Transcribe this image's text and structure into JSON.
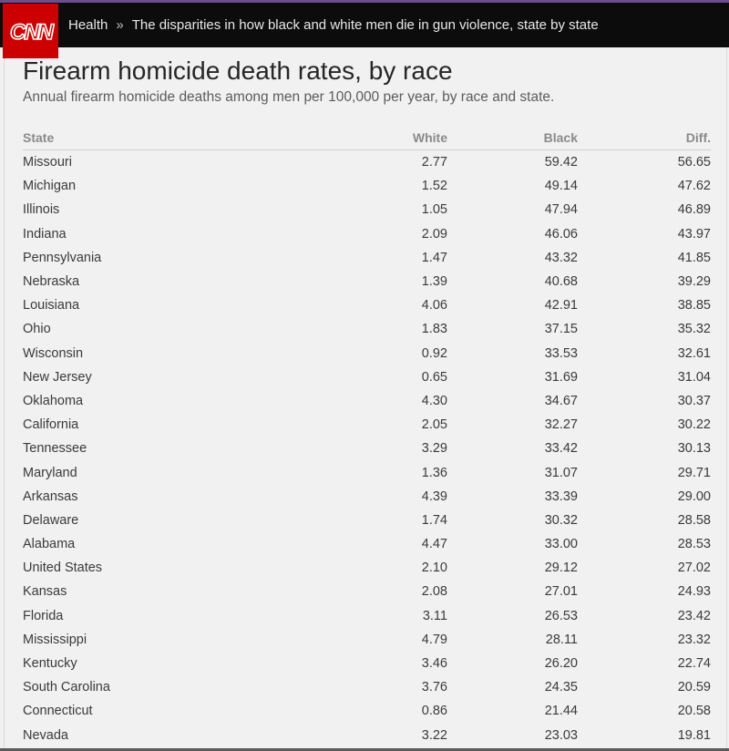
{
  "header": {
    "logo_text": "CNN",
    "section": "Health",
    "separator": "»",
    "article_title": "The disparities in how black and white men die in gun violence, state by state"
  },
  "title": "Firearm homicide death rates, by race",
  "subtitle": "Annual firearm homicide deaths among men per 100,000 per year, by race and state.",
  "table": {
    "columns": [
      "State",
      "White",
      "Black",
      "Diff."
    ],
    "rows": [
      [
        "Missouri",
        "2.77",
        "59.42",
        "56.65"
      ],
      [
        "Michigan",
        "1.52",
        "49.14",
        "47.62"
      ],
      [
        "Illinois",
        "1.05",
        "47.94",
        "46.89"
      ],
      [
        "Indiana",
        "2.09",
        "46.06",
        "43.97"
      ],
      [
        "Pennsylvania",
        "1.47",
        "43.32",
        "41.85"
      ],
      [
        "Nebraska",
        "1.39",
        "40.68",
        "39.29"
      ],
      [
        "Louisiana",
        "4.06",
        "42.91",
        "38.85"
      ],
      [
        "Ohio",
        "1.83",
        "37.15",
        "35.32"
      ],
      [
        "Wisconsin",
        "0.92",
        "33.53",
        "32.61"
      ],
      [
        "New Jersey",
        "0.65",
        "31.69",
        "31.04"
      ],
      [
        "Oklahoma",
        "4.30",
        "34.67",
        "30.37"
      ],
      [
        "California",
        "2.05",
        "32.27",
        "30.22"
      ],
      [
        "Tennessee",
        "3.29",
        "33.42",
        "30.13"
      ],
      [
        "Maryland",
        "1.36",
        "31.07",
        "29.71"
      ],
      [
        "Arkansas",
        "4.39",
        "33.39",
        "29.00"
      ],
      [
        "Delaware",
        "1.74",
        "30.32",
        "28.58"
      ],
      [
        "Alabama",
        "4.47",
        "33.00",
        "28.53"
      ],
      [
        "United States",
        "2.10",
        "29.12",
        "27.02"
      ],
      [
        "Kansas",
        "2.08",
        "27.01",
        "24.93"
      ],
      [
        "Florida",
        "3.11",
        "26.53",
        "23.42"
      ],
      [
        "Mississippi",
        "4.79",
        "28.11",
        "23.32"
      ],
      [
        "Kentucky",
        "3.46",
        "26.20",
        "22.74"
      ],
      [
        "South Carolina",
        "3.76",
        "24.35",
        "20.59"
      ],
      [
        "Connecticut",
        "0.86",
        "21.44",
        "20.58"
      ],
      [
        "Nevada",
        "3.22",
        "23.03",
        "19.81"
      ]
    ]
  },
  "colors": {
    "brand_red": "#cc0000",
    "header_bg": "#0c0c0c",
    "accent_top": "#6b4e8e"
  }
}
